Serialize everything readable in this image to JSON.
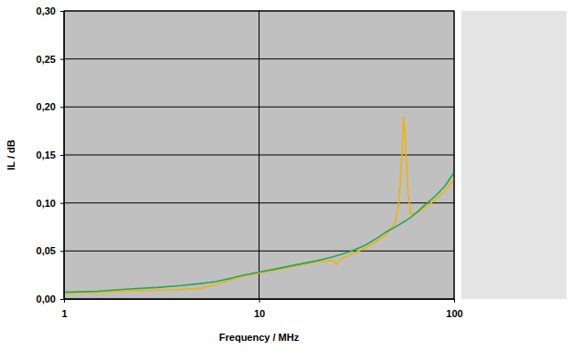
{
  "chart_data": {
    "type": "line",
    "x_label": "Frequency / MHz",
    "y_label": "IL / dB",
    "log": "x",
    "grid": true,
    "xlim": [
      1,
      100
    ],
    "xticks": [
      1,
      10,
      100
    ],
    "ylim": [
      0,
      0.3
    ],
    "yticks": [
      {
        "value": 0,
        "label": "0,00"
      },
      {
        "value": 0.05,
        "label": "0,05"
      },
      {
        "value": 0.1,
        "label": "0,10"
      },
      {
        "value": 0.15,
        "label": "0,15"
      },
      {
        "value": 0.2,
        "label": "0,20"
      },
      {
        "value": 0.25,
        "label": "0,25"
      },
      {
        "value": 0.3,
        "label": "0,30"
      }
    ],
    "x": [
      1,
      1.5,
      2,
      3,
      4,
      5,
      6,
      7,
      8,
      10,
      12,
      15,
      20,
      24,
      25,
      26,
      30,
      35,
      40,
      45,
      50,
      52,
      54,
      55,
      56,
      58,
      60,
      65,
      70,
      80,
      90,
      100
    ],
    "series": [
      {
        "color": "#f0b400",
        "line_style": "solid",
        "values": [
          0.006,
          0.007,
          0.008,
          0.009,
          0.01,
          0.011,
          0.015,
          0.019,
          0.023,
          0.027,
          0.03,
          0.034,
          0.039,
          0.04,
          0.036,
          0.041,
          0.047,
          0.053,
          0.06,
          0.067,
          0.08,
          0.1,
          0.15,
          0.19,
          0.17,
          0.11,
          0.088,
          0.09,
          0.095,
          0.103,
          0.113,
          0.125
        ]
      },
      {
        "color": "#22a858",
        "line_style": "solid",
        "values": [
          0.007,
          0.008,
          0.01,
          0.012,
          0.014,
          0.016,
          0.018,
          0.021,
          0.024,
          0.028,
          0.031,
          0.035,
          0.04,
          0.044,
          0.045,
          0.046,
          0.05,
          0.056,
          0.063,
          0.07,
          0.075,
          0.077,
          0.079,
          0.08,
          0.081,
          0.083,
          0.085,
          0.091,
          0.097,
          0.107,
          0.118,
          0.132
        ]
      }
    ]
  }
}
